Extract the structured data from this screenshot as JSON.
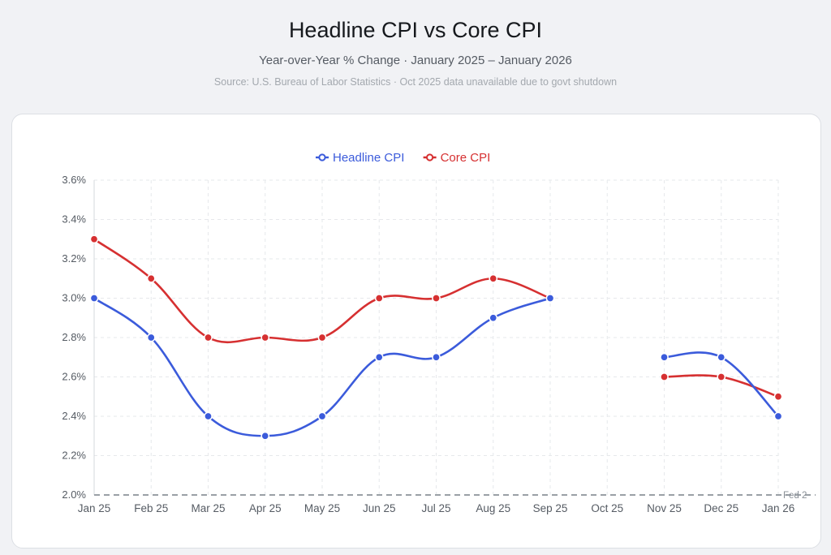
{
  "header": {
    "title": "Headline CPI vs Core CPI",
    "subtitle": "Year-over-Year % Change · January 2025 – January 2026",
    "source": "Source: U.S. Bureau of Labor Statistics · Oct 2025 data unavailable due to govt shutdown"
  },
  "chart_data": {
    "type": "line",
    "categories": [
      "Jan 25",
      "Feb 25",
      "Mar 25",
      "Apr 25",
      "May 25",
      "Jun 25",
      "Jul 25",
      "Aug 25",
      "Sep 25",
      "Oct 25",
      "Nov 25",
      "Dec 25",
      "Jan 26"
    ],
    "series": [
      {
        "name": "Headline CPI",
        "color": "#3b5bdb",
        "values": [
          3.0,
          2.8,
          2.4,
          2.3,
          2.4,
          2.7,
          2.7,
          2.9,
          3.0,
          null,
          2.7,
          2.7,
          2.4
        ]
      },
      {
        "name": "Core CPI",
        "color": "#d63031",
        "values": [
          3.3,
          3.1,
          2.8,
          2.8,
          2.8,
          3.0,
          3.0,
          3.1,
          3.0,
          null,
          2.6,
          2.6,
          2.5
        ]
      }
    ],
    "ylim": [
      2.0,
      3.6
    ],
    "yticks": [
      "2.0%",
      "2.2%",
      "2.4%",
      "2.6%",
      "2.8%",
      "3.0%",
      "3.2%",
      "3.4%",
      "3.6%"
    ],
    "grid": true,
    "legend_position": "top-center",
    "reference_line": {
      "value": 2.0,
      "label": "Fed 2",
      "color": "#9aa0a6"
    }
  }
}
